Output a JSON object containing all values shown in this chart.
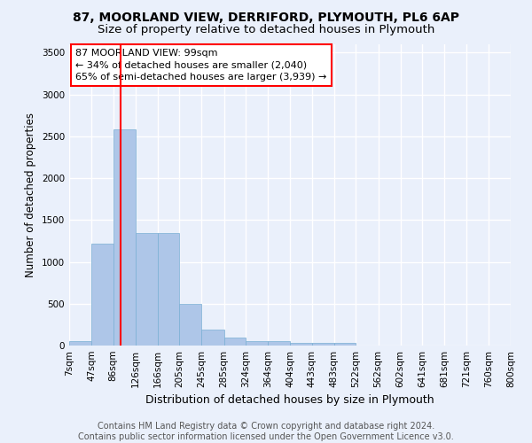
{
  "title1": "87, MOORLAND VIEW, DERRIFORD, PLYMOUTH, PL6 6AP",
  "title2": "Size of property relative to detached houses in Plymouth",
  "xlabel": "Distribution of detached houses by size in Plymouth",
  "ylabel": "Number of detached properties",
  "footer1": "Contains HM Land Registry data © Crown copyright and database right 2024.",
  "footer2": "Contains public sector information licensed under the Open Government Licence v3.0.",
  "bin_labels": [
    "7sqm",
    "47sqm",
    "86sqm",
    "126sqm",
    "166sqm",
    "205sqm",
    "245sqm",
    "285sqm",
    "324sqm",
    "364sqm",
    "404sqm",
    "443sqm",
    "483sqm",
    "522sqm",
    "562sqm",
    "602sqm",
    "641sqm",
    "681sqm",
    "721sqm",
    "760sqm",
    "800sqm"
  ],
  "bin_edges": [
    7,
    47,
    86,
    126,
    166,
    205,
    245,
    285,
    324,
    364,
    404,
    443,
    483,
    522,
    562,
    602,
    641,
    681,
    721,
    760,
    800
  ],
  "bar_heights": [
    50,
    1220,
    2580,
    1340,
    1340,
    500,
    190,
    100,
    50,
    50,
    30,
    30,
    30,
    0,
    0,
    0,
    0,
    0,
    0,
    0
  ],
  "bar_color": "#aec6e8",
  "bar_edgecolor": "#7aafd4",
  "bar_linewidth": 0.5,
  "vline_x": 99,
  "vline_color": "red",
  "vline_linewidth": 1.5,
  "annotation_line1": "87 MOORLAND VIEW: 99sqm",
  "annotation_line2": "← 34% of detached houses are smaller (2,040)",
  "annotation_line3": "65% of semi-detached houses are larger (3,939) →",
  "annotation_box_color": "red",
  "annotation_box_fill": "white",
  "ylim": [
    0,
    3600
  ],
  "yticks": [
    0,
    500,
    1000,
    1500,
    2000,
    2500,
    3000,
    3500
  ],
  "background_color": "#eaf0fb",
  "plot_bg_color": "#eaf0fb",
  "grid_color": "#ffffff",
  "title1_fontsize": 10,
  "title2_fontsize": 9.5,
  "xlabel_fontsize": 9,
  "ylabel_fontsize": 8.5,
  "tick_fontsize": 7.5,
  "annotation_fontsize": 8,
  "footer_fontsize": 7
}
